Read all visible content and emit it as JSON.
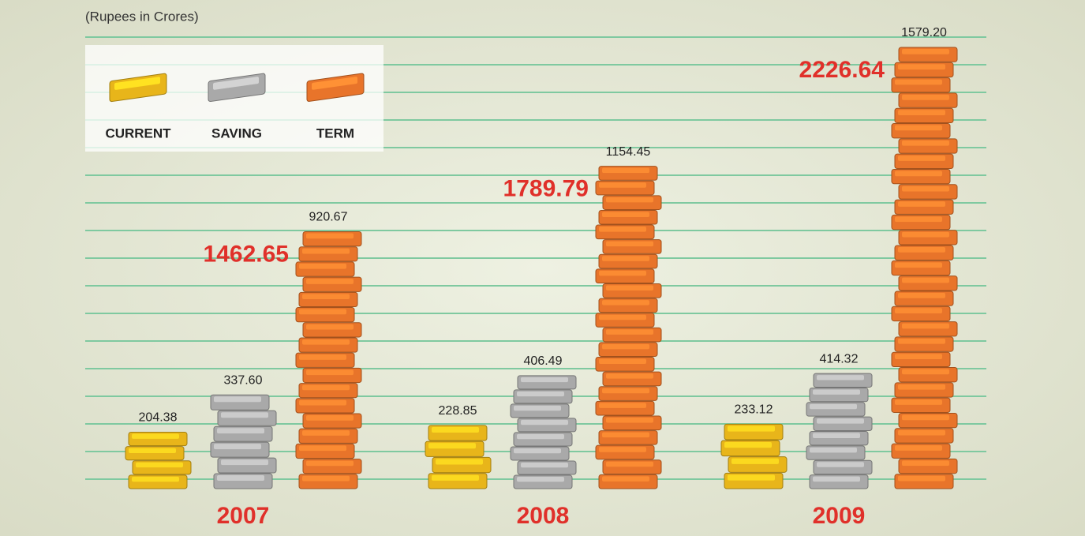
{
  "chart_data": {
    "type": "stacked-bricks",
    "subtitle": "(Rupees in Crores)",
    "categories": [
      "2007",
      "2008",
      "2009"
    ],
    "series": [
      {
        "name": "CURRENT",
        "color": "#e8b51a",
        "values": [
          204.38,
          228.85,
          233.12
        ],
        "value_labels": [
          "204.38",
          "228.85",
          "233.12"
        ]
      },
      {
        "name": "SAVING",
        "color": "#a9a9a9",
        "values": [
          337.6,
          406.49,
          414.32
        ],
        "value_labels": [
          "337.60",
          "406.49",
          "414.32"
        ]
      },
      {
        "name": "TERM",
        "color": "#e8742a",
        "values": [
          920.67,
          1154.45,
          1579.2
        ],
        "value_labels": [
          "920.67",
          "1154.45",
          "1579.20"
        ]
      }
    ],
    "totals": [
      1462.65,
      1789.79,
      2226.64
    ]
  }
}
